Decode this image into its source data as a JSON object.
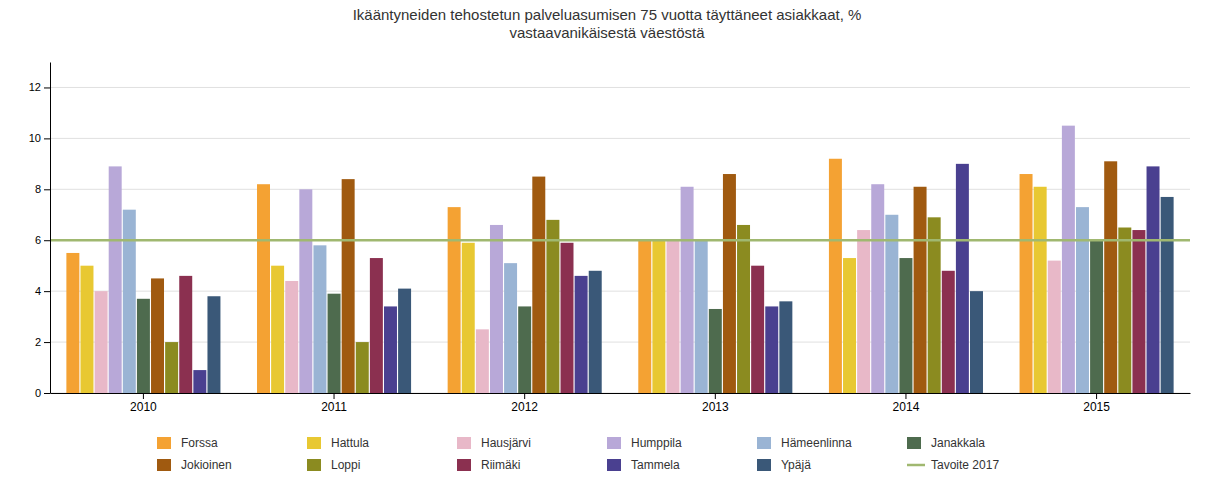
{
  "chart_data": {
    "type": "bar",
    "title": "Ikääntyneiden tehostetun palveluasumisen 75 vuotta täyttäneet asiakkaat, %\nvastaavanikäisestä väestöstä",
    "categories": [
      "2010",
      "2011",
      "2012",
      "2013",
      "2014",
      "2015"
    ],
    "series": [
      {
        "name": "Forssa",
        "color": "#f4a233",
        "values": [
          5.5,
          8.2,
          7.3,
          6.0,
          9.2,
          8.6
        ]
      },
      {
        "name": "Hattula",
        "color": "#e8c832",
        "values": [
          5.0,
          5.0,
          5.9,
          6.0,
          5.3,
          8.1
        ]
      },
      {
        "name": "Hausjärvi",
        "color": "#e8b8c8",
        "values": [
          4.0,
          4.4,
          2.5,
          6.0,
          6.4,
          5.2
        ]
      },
      {
        "name": "Humppila",
        "color": "#b8a8d8",
        "values": [
          8.9,
          8.0,
          6.6,
          8.1,
          8.2,
          10.5
        ]
      },
      {
        "name": "Hämeenlinna",
        "color": "#9ab4d4",
        "values": [
          7.2,
          5.8,
          5.1,
          6.0,
          7.0,
          7.3
        ]
      },
      {
        "name": "Janakkala",
        "color": "#4e6b4e",
        "values": [
          3.7,
          3.9,
          3.4,
          3.3,
          5.3,
          6.0
        ]
      },
      {
        "name": "Jokioinen",
        "color": "#a05a10",
        "values": [
          4.5,
          8.4,
          8.5,
          8.6,
          8.1,
          9.1
        ]
      },
      {
        "name": "Loppi",
        "color": "#8b8b20",
        "values": [
          2.0,
          2.0,
          6.8,
          6.6,
          6.9,
          6.5
        ]
      },
      {
        "name": "Riimäki",
        "color": "#8b3050",
        "values": [
          4.6,
          5.3,
          5.9,
          5.0,
          4.8,
          6.4
        ]
      },
      {
        "name": "Tammela",
        "color": "#4a4090",
        "values": [
          0.9,
          3.4,
          4.6,
          3.4,
          9.0,
          8.9
        ]
      },
      {
        "name": "Ypäjä",
        "color": "#3a5878",
        "values": [
          3.8,
          4.1,
          4.8,
          3.6,
          4.0,
          7.7
        ]
      },
      {
        "name": "Tavoite 2017",
        "type": "line",
        "color": "#a0b870",
        "values": [
          6.0,
          6.0,
          6.0,
          6.0,
          6.0,
          6.0
        ]
      }
    ],
    "ylim": [
      0,
      13
    ],
    "yticks": [
      0,
      2,
      4,
      6,
      8,
      10,
      12
    ],
    "grid": true
  }
}
